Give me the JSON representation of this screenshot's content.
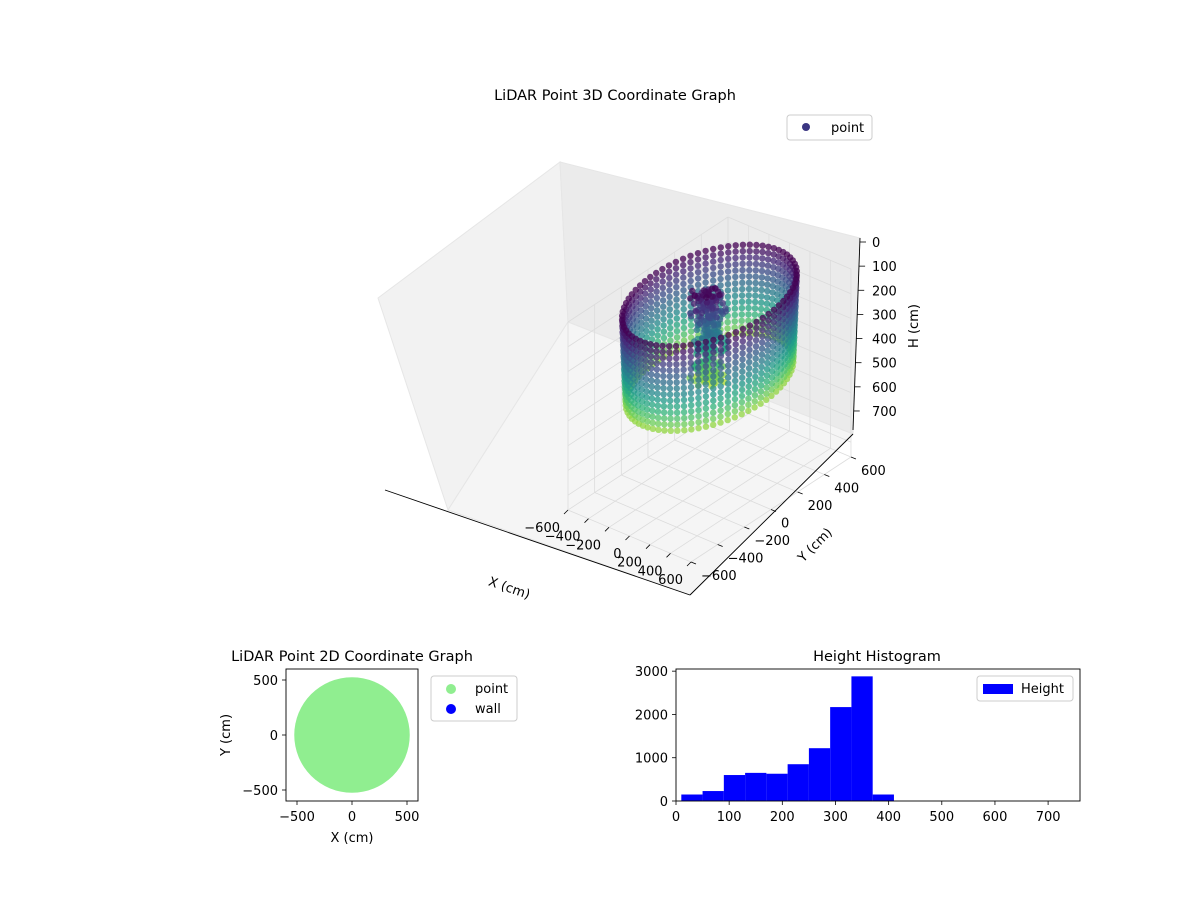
{
  "chart_data": [
    {
      "type": "scatter3d",
      "title": "LiDAR Point 3D Coordinate Graph",
      "xlabel": "X (cm)",
      "ylabel": "Y (cm)",
      "zlabel": "H (cm)",
      "xlim": [
        -600,
        600
      ],
      "ylim": [
        -600,
        600
      ],
      "zlim": [
        0,
        760
      ],
      "z_inverted": true,
      "xticks": [
        "−600",
        "−400",
        "−200",
        "0",
        "200",
        "400",
        "600"
      ],
      "yticks": [
        "−600",
        "−400",
        "−200",
        "0",
        "200",
        "400",
        "600"
      ],
      "zticks": [
        "0",
        "100",
        "200",
        "300",
        "400",
        "500",
        "600",
        "700"
      ],
      "legend": [
        {
          "label": "point",
          "color": "#3b3682"
        }
      ],
      "legend_position": "upper right",
      "colormap": "viridis",
      "grid": true,
      "structure": {
        "outer_wall_radius": 520,
        "wall_depth_range": [
          0,
          350
        ],
        "central_object_radius": 120,
        "central_object_depth_range": [
          0,
          380
        ]
      }
    },
    {
      "type": "scatter",
      "title": "LiDAR Point 2D Coordinate Graph",
      "xlabel": "X (cm)",
      "ylabel": "Y (cm)",
      "xlim": [
        -600,
        600
      ],
      "ylim": [
        -600,
        600
      ],
      "xticks": [
        "−500",
        "0",
        "500"
      ],
      "yticks": [
        "500",
        "0",
        "−500"
      ],
      "series": [
        {
          "name": "point",
          "color": "#90ee90",
          "shape": "disc",
          "radius": 525
        },
        {
          "name": "wall",
          "color": "#0000ff",
          "count": 0
        }
      ],
      "legend_position": "outside right"
    },
    {
      "type": "bar",
      "title": "Height Histogram",
      "xlim": [
        0,
        760
      ],
      "ylim": [
        0,
        3050
      ],
      "xticks": [
        "0",
        "100",
        "200",
        "300",
        "400",
        "500",
        "600",
        "700"
      ],
      "yticks": [
        "0",
        "1000",
        "2000",
        "3000"
      ],
      "bin_edges": [
        10,
        50,
        90,
        130,
        170,
        210,
        250,
        290,
        330,
        370,
        410
      ],
      "values": [
        150,
        230,
        600,
        650,
        630,
        850,
        1220,
        2170,
        2880,
        150
      ],
      "series": [
        {
          "name": "Height",
          "color": "#0000ff"
        }
      ],
      "legend_position": "upper right"
    }
  ]
}
